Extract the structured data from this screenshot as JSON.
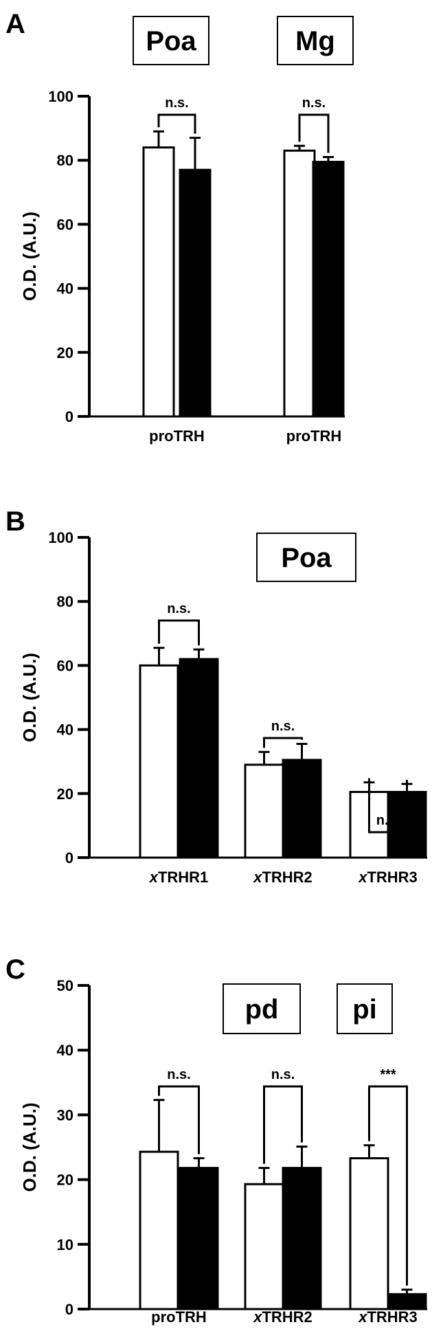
{
  "chart_data": [
    {
      "panel": "A",
      "type": "bar",
      "ylabel": "O.D. (A.U.)",
      "ylim": [
        0,
        100
      ],
      "yticks": [
        0,
        20,
        40,
        60,
        80,
        100
      ],
      "region_labels": [
        "Poa",
        "Mg"
      ],
      "categories": [
        "proTRH",
        "proTRH"
      ],
      "series": [
        {
          "fill": "#ffffff",
          "values": [
            84,
            83
          ],
          "errors": [
            5,
            1.5
          ]
        },
        {
          "fill": "#000000",
          "values": [
            77,
            79.5
          ],
          "errors": [
            10,
            1.5
          ]
        }
      ],
      "significance": [
        "n.s.",
        "n.s."
      ]
    },
    {
      "panel": "B",
      "type": "bar",
      "ylabel": "O.D. (A.U.)",
      "ylim": [
        0,
        100
      ],
      "yticks": [
        0,
        20,
        40,
        60,
        80,
        100
      ],
      "region_labels": [
        "Poa"
      ],
      "categories": [
        {
          "prefix": "x",
          "name": "TRHR1"
        },
        {
          "prefix": "x",
          "name": "TRHR2"
        },
        {
          "prefix": "x",
          "name": "TRHR3"
        }
      ],
      "series": [
        {
          "fill": "#ffffff",
          "values": [
            60,
            29,
            20.5
          ],
          "errors": [
            5.5,
            4,
            3
          ]
        },
        {
          "fill": "#000000",
          "values": [
            62,
            30.5,
            20.5
          ],
          "errors": [
            3,
            5,
            2.5
          ]
        }
      ],
      "significance": [
        "n.s.",
        "n.s.",
        "n.s."
      ]
    },
    {
      "panel": "C",
      "type": "bar",
      "ylabel": "O.D. (A.U.)",
      "ylim": [
        0,
        50
      ],
      "yticks": [
        0,
        10,
        20,
        30,
        40,
        50
      ],
      "region_labels": [
        "pd",
        "pi"
      ],
      "categories": [
        {
          "prefix": "",
          "name": "proTRH"
        },
        {
          "prefix": "x",
          "name": "TRHR2"
        },
        {
          "prefix": "x",
          "name": "TRHR3"
        }
      ],
      "series": [
        {
          "fill": "#ffffff",
          "values": [
            24.3,
            19.3,
            23.3
          ],
          "errors": [
            8,
            2.5,
            2
          ]
        },
        {
          "fill": "#000000",
          "values": [
            21.8,
            21.8,
            2.3
          ],
          "errors": [
            1.5,
            3.3,
            0.7
          ]
        }
      ],
      "significance": [
        "n.s.",
        "n.s.",
        "***"
      ]
    }
  ]
}
